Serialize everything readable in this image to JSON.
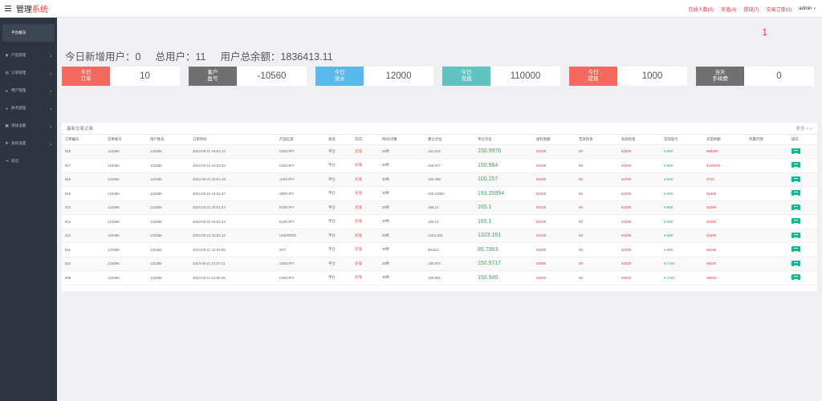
{
  "header": {
    "brand_main": "管理",
    "brand_accent": "系统",
    "links": [
      "在线人数(0)",
      "充值(4)",
      "提现(7)",
      "交易订单(0)"
    ],
    "user": "admin"
  },
  "sidebar": {
    "items": [
      {
        "label": "平台概况",
        "icon": "home-icon",
        "active": true
      },
      {
        "label": "产品管理",
        "icon": "product-icon",
        "caret": true
      },
      {
        "label": "订单管理",
        "icon": "order-icon",
        "caret": true
      },
      {
        "label": "用户管理",
        "icon": "user-icon",
        "caret": true
      },
      {
        "label": "财务管理",
        "icon": "finance-icon",
        "caret": true
      },
      {
        "label": "审核设置",
        "icon": "review-icon",
        "caret": true
      },
      {
        "label": "系统设置",
        "icon": "gear-icon",
        "caret": true
      },
      {
        "label": "退出",
        "icon": "logout-icon"
      }
    ]
  },
  "notice_count": "1",
  "summary": {
    "new_users": "今日新增用户：0",
    "total_users": "总用户：11",
    "total_balance": "用户总余额：1836413.11"
  },
  "stats": [
    {
      "label_line1": "今日",
      "label_line2": "订单",
      "value": "10",
      "color": "#f46a5f"
    },
    {
      "label_line1": "客户",
      "label_line2": "盈亏",
      "value": "-10560",
      "color": "#707070"
    },
    {
      "label_line1": "今日",
      "label_line2": "流水",
      "value": "12000",
      "color": "#5ab9ea"
    },
    {
      "label_line1": "今日",
      "label_line2": "充值",
      "value": "110000",
      "color": "#60c3c1"
    },
    {
      "label_line1": "今日",
      "label_line2": "提现",
      "value": "1000",
      "color": "#f46a5f"
    },
    {
      "label_line1": "当天",
      "label_line2": "手续费",
      "value": "0",
      "color": "#707070"
    }
  ],
  "table": {
    "title": "最新交易记录",
    "more": "更多 > >",
    "columns": [
      "订单编号",
      "交易账号",
      "用户姓名",
      "订单时间",
      "产品信息",
      "状态",
      "方向",
      "时间/点数",
      "建仓点位",
      "平仓点位",
      "委托金额",
      "无效资金",
      "有效资金",
      "实际盈亏",
      "买后余额",
      "所属代理",
      "操作"
    ],
    "rows": [
      [
        "818",
        "123456",
        "123456",
        "2024-03-21 15:04:12",
        "USD/JPY",
        "平仓",
        "买涨",
        "30秒",
        "151.015",
        "150.9976",
        "¥1000",
        "¥0",
        "¥1000",
        "¥-880",
        "¥99320",
        ""
      ],
      [
        "817",
        "123456",
        "123456",
        "2024-03-21 15:03:20",
        "USD/JPY",
        "平仓",
        "买涨",
        "30秒",
        "150.977",
        "150.964",
        "¥1000",
        "¥0",
        "¥1000",
        "¥-880",
        "¥100200",
        ""
      ],
      [
        "816",
        "123456",
        "123456",
        "2024-03-21 15:01:48",
        "AUD/JPY",
        "平仓",
        "买涨",
        "30秒",
        "100.258",
        "100.257",
        "¥1000",
        "¥0",
        "¥1000",
        "¥-880",
        "¥720",
        ""
      ],
      [
        "815",
        "123456",
        "123456",
        "2024-03-21 15:01:37",
        "GBP/JPY",
        "平仓",
        "买涨",
        "30秒",
        "193.24894",
        "193.20894",
        "¥1000",
        "¥0",
        "¥1000",
        "¥-880",
        "¥1680",
        ""
      ],
      [
        "814",
        "123456",
        "123456",
        "2024-03-21 15:01:27",
        "EUR/JPY",
        "平仓",
        "买涨",
        "30秒",
        "165.12",
        "165.1",
        "¥1000",
        "¥0",
        "¥1000",
        "¥-880",
        "¥2480",
        ""
      ],
      [
        "813",
        "123456",
        "123456",
        "2024-03-21 15:01:24",
        "EUR/JPY",
        "平仓",
        "买涨",
        "30秒",
        "165.12",
        "165.1",
        "¥1000",
        "¥0",
        "¥1000",
        "¥-880",
        "¥3480",
        ""
      ],
      [
        "812",
        "123456",
        "123456",
        "2024-03-21 15:01:14",
        "USD/KRW",
        "平仓",
        "买涨",
        "30秒",
        "1323.166",
        "1323.161",
        "¥1000",
        "¥0",
        "¥1000",
        "¥-880",
        "¥4480",
        ""
      ],
      [
        "811",
        "123456",
        "123456",
        "2024-03-21 15:01:06",
        "WTI",
        "平仓",
        "买涨",
        "30秒",
        "85.813",
        "85.7963",
        "¥1000",
        "¥0",
        "¥1000",
        "¥-880",
        "¥5480",
        ""
      ],
      [
        "810",
        "123456",
        "123456",
        "2024-03-21 14:57:11",
        "USD/JPY",
        "平仓",
        "买涨",
        "30秒",
        "150.974",
        "150.9717",
        "¥2000",
        "¥0",
        "¥2000",
        "¥-1760",
        "¥6240",
        ""
      ],
      [
        "809",
        "123456",
        "123456",
        "2024-03-21 14:56:36",
        "USD/JPY",
        "平仓",
        "买涨",
        "30秒",
        "150.961",
        "150.949",
        "¥2000",
        "¥0",
        "¥2000",
        "¥-1760",
        "¥8000",
        ""
      ]
    ]
  }
}
